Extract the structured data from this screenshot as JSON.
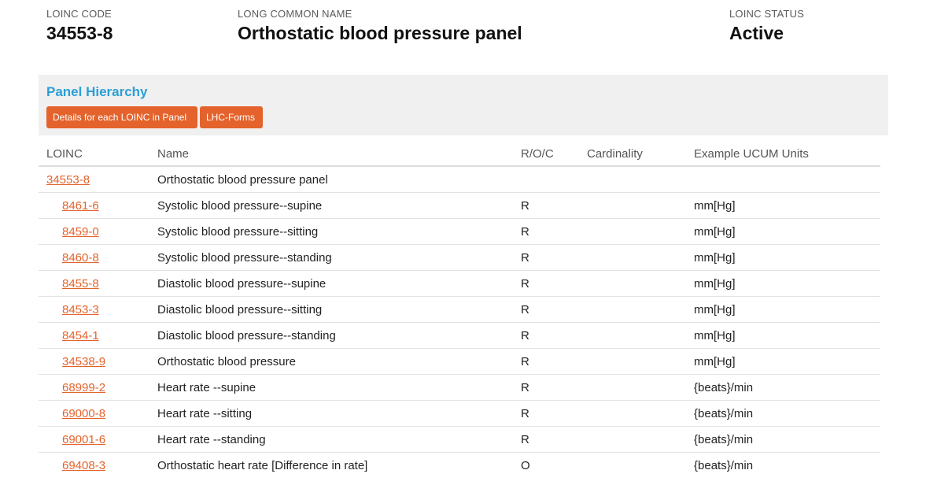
{
  "header": {
    "code_label": "LOINC CODE",
    "code_value": "34553-8",
    "name_label": "LONG COMMON NAME",
    "name_value": "Orthostatic blood pressure panel",
    "status_label": "LOINC STATUS",
    "status_value": "Active"
  },
  "panel": {
    "title": "Panel Hierarchy",
    "buttons": {
      "details": "Details for each LOINC in Panel",
      "lhc": "LHC-Forms"
    }
  },
  "table": {
    "headers": [
      "LOINC",
      "Name",
      "R/O/C",
      "Cardinality",
      "Example UCUM Units"
    ],
    "rows": [
      {
        "loinc": "34553-8",
        "name": "Orthostatic blood pressure panel",
        "roc": "",
        "card": "",
        "units": "",
        "level": 0
      },
      {
        "loinc": "8461-6",
        "name": "Systolic blood pressure--supine",
        "roc": "R",
        "card": "",
        "units": "mm[Hg]",
        "level": 1
      },
      {
        "loinc": "8459-0",
        "name": "Systolic blood pressure--sitting",
        "roc": "R",
        "card": "",
        "units": "mm[Hg]",
        "level": 1
      },
      {
        "loinc": "8460-8",
        "name": "Systolic blood pressure--standing",
        "roc": "R",
        "card": "",
        "units": "mm[Hg]",
        "level": 1
      },
      {
        "loinc": "8455-8",
        "name": "Diastolic blood pressure--supine",
        "roc": "R",
        "card": "",
        "units": "mm[Hg]",
        "level": 1
      },
      {
        "loinc": "8453-3",
        "name": "Diastolic blood pressure--sitting",
        "roc": "R",
        "card": "",
        "units": "mm[Hg]",
        "level": 1
      },
      {
        "loinc": "8454-1",
        "name": "Diastolic blood pressure--standing",
        "roc": "R",
        "card": "",
        "units": "mm[Hg]",
        "level": 1
      },
      {
        "loinc": "34538-9",
        "name": "Orthostatic blood pressure",
        "roc": "R",
        "card": "",
        "units": "mm[Hg]",
        "level": 1
      },
      {
        "loinc": "68999-2",
        "name": "Heart rate --supine",
        "roc": "R",
        "card": "",
        "units": "{beats}/min",
        "level": 1
      },
      {
        "loinc": "69000-8",
        "name": "Heart rate --sitting",
        "roc": "R",
        "card": "",
        "units": "{beats}/min",
        "level": 1
      },
      {
        "loinc": "69001-6",
        "name": "Heart rate --standing",
        "roc": "R",
        "card": "",
        "units": "{beats}/min",
        "level": 1
      },
      {
        "loinc": "69408-3",
        "name": "Orthostatic heart rate [Difference in rate]",
        "roc": "O",
        "card": "",
        "units": "{beats}/min",
        "level": 1
      }
    ]
  },
  "colors": {
    "accent": "#e4632c",
    "title_blue": "#2a9fd6",
    "panel_bg": "#f0f0f0"
  }
}
